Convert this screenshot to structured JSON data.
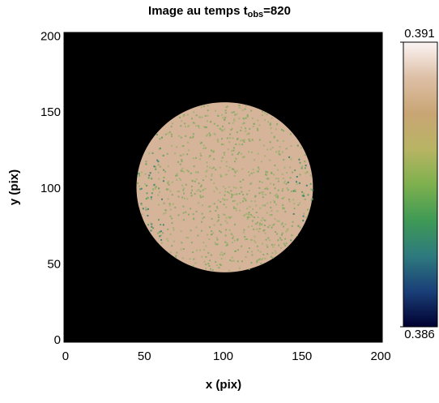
{
  "chart_data": {
    "type": "image",
    "title": "Image au temps t",
    "title_subscript": "obs",
    "title_suffix": "=820",
    "x_label": "x (pix)",
    "y_label": "y (pix)",
    "xlim": [
      -1,
      201
    ],
    "ylim": [
      -1,
      203
    ],
    "xticks": [
      0,
      50,
      100,
      150,
      200
    ],
    "yticks": [
      0,
      50,
      100,
      150,
      200
    ],
    "background": "#000000",
    "disc": {
      "center": [
        101,
        101
      ],
      "radius": 56,
      "color": "#d6b49a",
      "speckle_colors": [
        "#9eb070",
        "#7fa860",
        "#4f9a58",
        "#2f7a70",
        "#c8c088"
      ]
    },
    "colorbar": {
      "lim": [
        0.386,
        0.391
      ],
      "ticks": [
        0.386,
        0.391
      ],
      "colors": [
        "#000030",
        "#1a3f78",
        "#2e7a7e",
        "#3f9a55",
        "#7eb04e",
        "#b8b464",
        "#c9a574",
        "#ddbfa6",
        "#fbf4f3"
      ]
    }
  }
}
